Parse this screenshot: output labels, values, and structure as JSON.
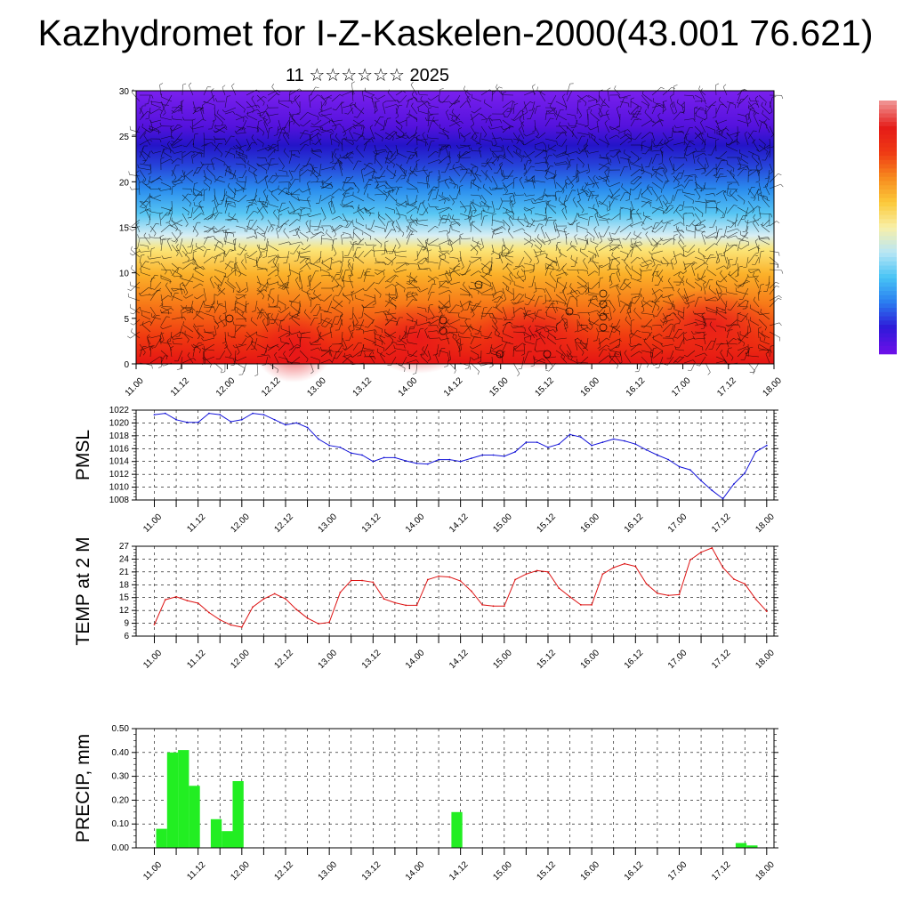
{
  "page": {
    "title": "Kazhydromet for I-Z-Kaskelen-2000(43.001 76.621)",
    "subtitle": "11 ☆☆☆☆☆☆ 2025"
  },
  "chart_data": [
    {
      "type": "heatmap",
      "title": "",
      "ylim": [
        0,
        30
      ],
      "yticks": [
        "0",
        "5",
        "10",
        "15",
        "20",
        "25",
        "30"
      ],
      "xticks": [
        "11.00",
        "11.12",
        "12.00",
        "12.12",
        "13.00",
        "13.12",
        "14.00",
        "14.12",
        "15.00",
        "15.12",
        "16.00",
        "16.12",
        "17.00",
        "17.12",
        "18.00"
      ],
      "overlay": "wind barbs",
      "colorbar": {
        "colors": [
          "#6a10e8",
          "#2e1ad9",
          "#2a7ef0",
          "#48c4f5",
          "#b9e6f5",
          "#f8f0a8",
          "#fbc93a",
          "#f78a1e",
          "#ef3a14",
          "#e51b18",
          "#ef8e8e"
        ]
      }
    },
    {
      "type": "line",
      "ylabel": "PMSL",
      "ylim": [
        1008,
        1022
      ],
      "yticks": [
        "1008",
        "1010",
        "1012",
        "1014",
        "1016",
        "1018",
        "1020",
        "1022"
      ],
      "xticks": [
        "11.00",
        "11.12",
        "12.00",
        "12.12",
        "13.00",
        "13.12",
        "14.00",
        "14.12",
        "15.00",
        "15.12",
        "16.00",
        "16.12",
        "17.00",
        "17.12",
        "18.00"
      ],
      "color": "#1414d8",
      "x": [
        0,
        3,
        6,
        9,
        12,
        15,
        18,
        21,
        24,
        27,
        30,
        33,
        36,
        39,
        42,
        45,
        48,
        51,
        54,
        57,
        60,
        63,
        66,
        69,
        72,
        75,
        78,
        81,
        84,
        87,
        90,
        93,
        96,
        99,
        102,
        105,
        108,
        111,
        114,
        117,
        120,
        123,
        126,
        129,
        132,
        135,
        138,
        141,
        144,
        147,
        150,
        153,
        156,
        159,
        162,
        165,
        168
      ],
      "values": [
        1021.3,
        1021.5,
        1020.5,
        1020.1,
        1020.1,
        1021.5,
        1021.3,
        1020.2,
        1020.5,
        1021.5,
        1021.3,
        1020.5,
        1019.7,
        1020,
        1019.3,
        1017.5,
        1016.5,
        1016.2,
        1015.3,
        1015,
        1014,
        1014.6,
        1014.6,
        1014.1,
        1013.7,
        1013.6,
        1014.3,
        1014.3,
        1014,
        1014.5,
        1015,
        1015,
        1014.8,
        1015.5,
        1017,
        1017,
        1016.2,
        1016.7,
        1018.2,
        1017.8,
        1016.5,
        1017,
        1017.5,
        1017.2,
        1016.7,
        1015.8,
        1015,
        1014.3,
        1013.2,
        1012.7,
        1011,
        1009.5,
        1008.2,
        1010.5,
        1012.2,
        1015.5,
        1016.5
      ]
    },
    {
      "type": "line",
      "ylabel": "TEMP at 2 M",
      "ylim": [
        6,
        27
      ],
      "yticks": [
        "6",
        "9",
        "12",
        "15",
        "18",
        "21",
        "24",
        "27"
      ],
      "xticks": [
        "11.00",
        "11.12",
        "12.00",
        "12.12",
        "13.00",
        "13.12",
        "14.00",
        "14.12",
        "15.00",
        "15.12",
        "16.00",
        "16.12",
        "17.00",
        "17.12",
        "18.00"
      ],
      "color": "#dd1414",
      "x": [
        0,
        3,
        6,
        9,
        12,
        15,
        18,
        21,
        24,
        27,
        30,
        33,
        36,
        39,
        42,
        45,
        48,
        51,
        54,
        57,
        60,
        63,
        66,
        69,
        72,
        75,
        78,
        81,
        84,
        87,
        90,
        93,
        96,
        99,
        102,
        105,
        108,
        111,
        114,
        117,
        120,
        123,
        126,
        129,
        132,
        135,
        138,
        141,
        144,
        147,
        150,
        153,
        156,
        159,
        162,
        165,
        168
      ],
      "values": [
        8.7,
        14.5,
        15.2,
        14.3,
        13.7,
        11.5,
        9.8,
        8.6,
        8.1,
        12.8,
        14.7,
        15.9,
        14.7,
        12.2,
        10.2,
        8.9,
        9.2,
        16.2,
        19,
        19,
        18.6,
        14.7,
        13.8,
        13.2,
        13.2,
        19.2,
        20,
        19.8,
        18.9,
        16.5,
        13.3,
        13,
        13,
        19.2,
        20.5,
        21.3,
        21,
        17.2,
        15.2,
        13.3,
        13.3,
        20.5,
        22,
        22.9,
        22.3,
        18.2,
        16,
        15.5,
        15.7,
        23.8,
        25.6,
        26.6,
        22,
        19.3,
        18.2,
        14.6,
        11.8
      ]
    },
    {
      "type": "bar",
      "ylabel": "PRECIP, mm",
      "ylim": [
        0,
        0.5
      ],
      "yticks": [
        "0.00",
        "0.10",
        "0.20",
        "0.30",
        "0.40",
        "0.50"
      ],
      "xticks": [
        "11.00",
        "11.12",
        "12.00",
        "12.12",
        "13.00",
        "13.12",
        "14.00",
        "14.12",
        "15.00",
        "15.12",
        "16.00",
        "16.12",
        "17.00",
        "17.12",
        "18.00"
      ],
      "color": "#22ee22",
      "x": [
        0,
        3,
        6,
        9,
        15,
        18,
        21,
        81,
        159,
        162
      ],
      "values": [
        0.08,
        0.4,
        0.41,
        0.26,
        0.12,
        0.07,
        0.28,
        0.15,
        0.02,
        0.01
      ]
    }
  ]
}
